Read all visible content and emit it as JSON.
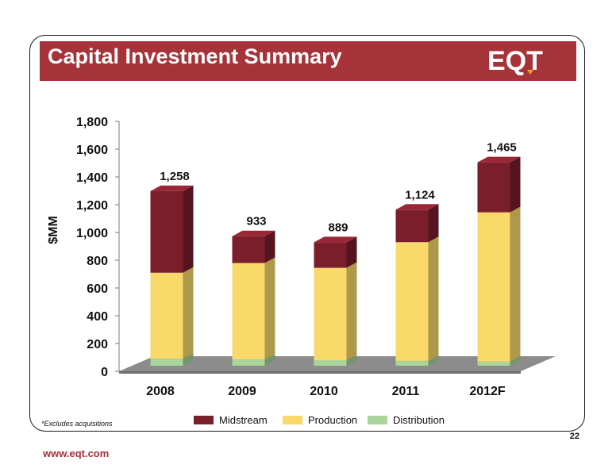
{
  "slide": {
    "title": "Capital Investment Summary",
    "logo_text": "EQT",
    "footnote": "*Excludes acquisitions",
    "url": "www.eqt.com",
    "page_number": "22",
    "colors": {
      "banner": "#a6333a",
      "midstream": "#7b1e2b",
      "production": "#f8d96a",
      "distribution": "#a9d49a"
    }
  },
  "chart_data": {
    "type": "bar",
    "stacked": true,
    "title": "",
    "xlabel": "",
    "ylabel": "$MM",
    "ylim": [
      0,
      1800
    ],
    "yticks": [
      0,
      200,
      400,
      600,
      800,
      1000,
      1200,
      1400,
      1600,
      1800
    ],
    "ytick_labels": [
      "0",
      "200",
      "400",
      "600",
      "800",
      "1,000",
      "1,200",
      "1,400",
      "1,600",
      "1,800"
    ],
    "categories": [
      "2008",
      "2009",
      "2010",
      "2011",
      "2012F"
    ],
    "series": [
      {
        "name": "Distribution",
        "values": [
          50,
          45,
          40,
          35,
          30
        ]
      },
      {
        "name": "Production",
        "values": [
          620,
          695,
          665,
          855,
          1075
        ]
      },
      {
        "name": "Midstream",
        "values": [
          588,
          193,
          184,
          234,
          360
        ]
      }
    ],
    "totals": [
      1258,
      933,
      889,
      1124,
      1465
    ],
    "total_labels": [
      "1,258",
      "933",
      "889",
      "1,124",
      "1,465"
    ],
    "legend": [
      "Midstream",
      "Production",
      "Distribution"
    ],
    "legend_position": "bottom",
    "grid": false
  }
}
